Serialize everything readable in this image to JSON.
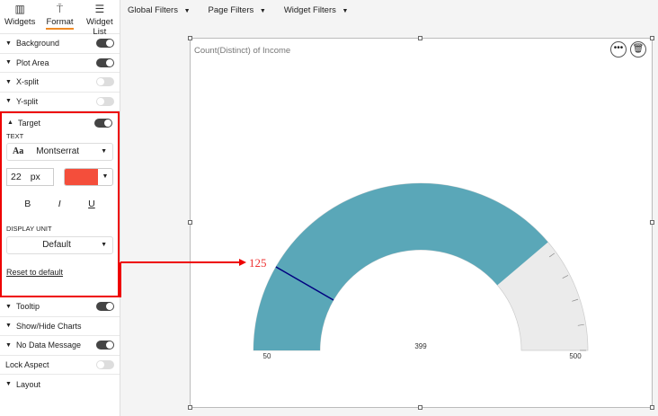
{
  "sidebar": {
    "tabs": [
      {
        "label": "Widgets",
        "icon": "chart-icon"
      },
      {
        "label": "Format",
        "icon": "paint-roller-icon"
      },
      {
        "label": "Widget List",
        "icon": "list-icon"
      }
    ],
    "sections_top": [
      {
        "label": "Background",
        "on": true
      },
      {
        "label": "Plot Area",
        "on": true
      },
      {
        "label": "X-split",
        "on": false
      },
      {
        "label": "Y-split",
        "on": false
      }
    ],
    "target": {
      "label": "Target",
      "on": true,
      "text_label": "TEXT",
      "font": "Montserrat",
      "font_icon": "Aa",
      "size": "22",
      "unit": "px",
      "color": "#f44e3b",
      "bold": "B",
      "italic": "I",
      "underline": "U",
      "display_unit_label": "DISPLAY UNIT",
      "display_unit": "Default",
      "reset": "Reset to default"
    },
    "sections_bottom": [
      {
        "label": "Tooltip",
        "on": true
      },
      {
        "label": "Show/Hide Charts"
      },
      {
        "label": "No Data Message",
        "on": true
      },
      {
        "label": "Lock Aspect",
        "on": false
      },
      {
        "label": "Layout"
      }
    ]
  },
  "topbar": {
    "filters": [
      "Global Filters",
      "Page Filters",
      "Widget Filters"
    ]
  },
  "widget": {
    "title": "Count(Distinct) of Income"
  },
  "chart_data": {
    "type": "gauge",
    "min": 50,
    "max": 500,
    "value": 399,
    "target": 125,
    "labels": {
      "min": "50",
      "max": "500",
      "value": "399",
      "target": "125"
    },
    "fill_color": "#5aa7b8",
    "track_color": "#ebebeb",
    "target_color": "#000080",
    "annotation_color": "#e00000"
  }
}
